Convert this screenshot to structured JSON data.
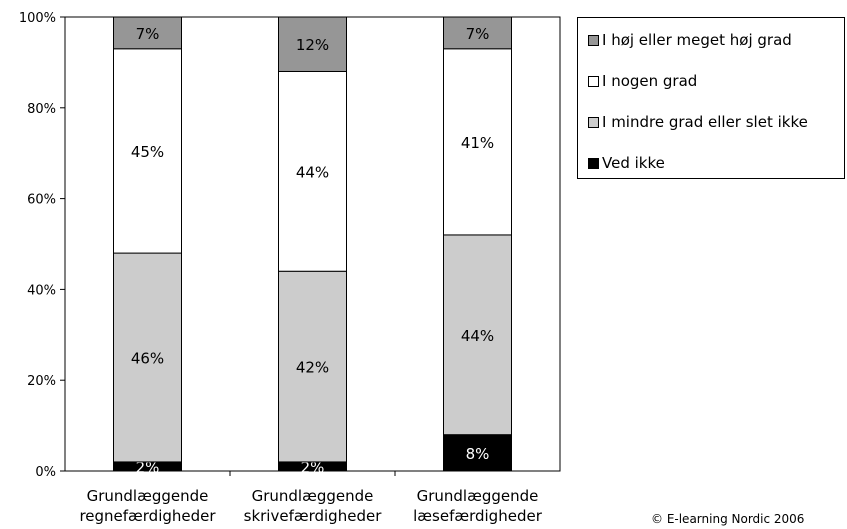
{
  "chart_data": {
    "type": "bar",
    "stacked": true,
    "categories": [
      [
        "Grundlæggende",
        "regnefærdigheder"
      ],
      [
        "Grundlæggende",
        "skrivefærdigheder"
      ],
      [
        "Grundlæggende",
        "læsefærdigheder"
      ]
    ],
    "series": [
      {
        "name": "Ved ikke",
        "color": "#000000",
        "label_color": "#ffffff",
        "values": [
          2,
          2,
          8
        ]
      },
      {
        "name": "I mindre grad eller slet ikke",
        "color": "#cccccc",
        "label_color": "#000000",
        "values": [
          46,
          42,
          44
        ]
      },
      {
        "name": "I nogen grad",
        "color": "#ffffff",
        "label_color": "#000000",
        "values": [
          45,
          44,
          41
        ]
      },
      {
        "name": "I høj eller meget høj grad",
        "color": "#969696",
        "label_color": "#000000",
        "values": [
          7,
          12,
          7
        ]
      }
    ],
    "data_labels": [
      [
        "2%",
        "46%",
        "45%",
        "7%"
      ],
      [
        "2%",
        "42%",
        "44%",
        "12%"
      ],
      [
        "8%",
        "44%",
        "41%",
        "7%"
      ]
    ],
    "ylim": [
      0,
      100
    ],
    "yticks": [
      0,
      20,
      40,
      60,
      80,
      100
    ],
    "ytick_labels": [
      "0%",
      "20%",
      "40%",
      "60%",
      "80%",
      "100%"
    ],
    "legend_order": [
      "I høj eller meget høj grad",
      "I nogen grad",
      "I mindre grad eller slet ikke",
      "Ved ikke"
    ],
    "legend_position": "right",
    "grid": false
  },
  "footer": {
    "copyright": "© E-learning Nordic 2006"
  }
}
